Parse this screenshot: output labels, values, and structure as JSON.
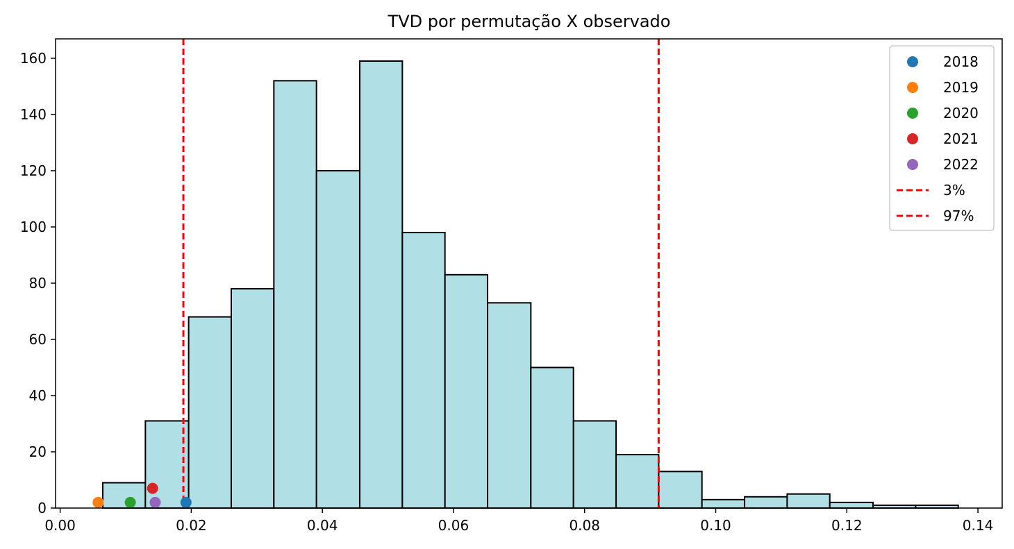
{
  "chart_data": {
    "type": "bar",
    "title": "TVD por permutação X observado",
    "xlabel": "",
    "ylabel": "",
    "xlim": [
      -0.0007,
      0.1437
    ],
    "ylim": [
      0,
      166.9
    ],
    "x_ticks": [
      0.0,
      0.02,
      0.04,
      0.06,
      0.08,
      0.1,
      0.12,
      0.14
    ],
    "x_tick_labels": [
      "0.00",
      "0.02",
      "0.04",
      "0.06",
      "0.08",
      "0.10",
      "0.12",
      "0.14"
    ],
    "y_ticks": [
      0,
      20,
      40,
      60,
      80,
      100,
      120,
      140,
      160
    ],
    "y_tick_labels": [
      "0",
      "20",
      "40",
      "60",
      "80",
      "100",
      "120",
      "140",
      "160"
    ],
    "grid": false,
    "legend_position": "top-right",
    "histogram": {
      "bin_edges": [
        0.0065,
        0.013,
        0.0196,
        0.0261,
        0.0326,
        0.0391,
        0.0457,
        0.0522,
        0.0587,
        0.0652,
        0.0718,
        0.0783,
        0.0848,
        0.0913,
        0.0979,
        0.1044,
        0.1109,
        0.1174,
        0.124,
        0.1305,
        0.137
      ],
      "counts": [
        9,
        31,
        68,
        78,
        152,
        120,
        159,
        98,
        83,
        73,
        50,
        31,
        19,
        13,
        3,
        4,
        5,
        2,
        1,
        1
      ],
      "fill_color": "#b0dfe5",
      "edge_color": "#000000"
    },
    "observed_points": [
      {
        "name": "2018",
        "x": 0.0192,
        "y": 2,
        "color": "#1f77b4"
      },
      {
        "name": "2019",
        "x": 0.0058,
        "y": 2,
        "color": "#ff7f0e"
      },
      {
        "name": "2020",
        "x": 0.0107,
        "y": 2,
        "color": "#2ca02c"
      },
      {
        "name": "2021",
        "x": 0.0141,
        "y": 7,
        "color": "#d62728"
      },
      {
        "name": "2022",
        "x": 0.0145,
        "y": 2,
        "color": "#9467bd"
      }
    ],
    "percentile_lines": [
      {
        "name": "3%",
        "x": 0.0188,
        "color": "#ff0000"
      },
      {
        "name": "97%",
        "x": 0.0913,
        "color": "#ff0000"
      }
    ]
  }
}
